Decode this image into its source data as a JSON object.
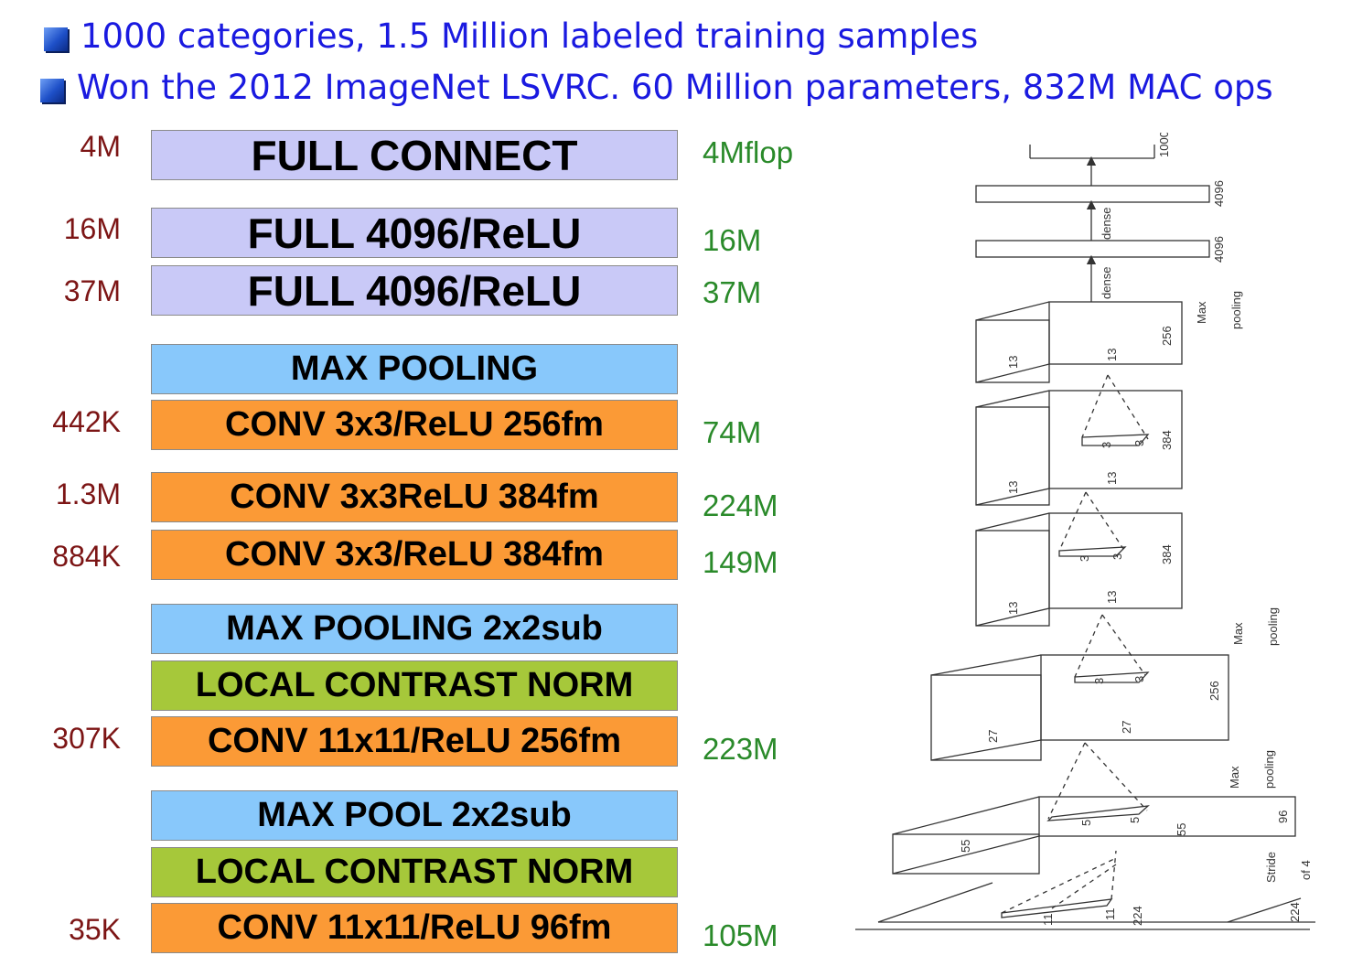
{
  "bullets": [
    "1000 categories, 1.5 Million labeled training samples",
    "Won the 2012 ImageNet LSVRC. 60 Million parameters, 832M MAC ops"
  ],
  "layers": [
    {
      "label": "FULL CONNECT",
      "kind": "fc",
      "params": "4M",
      "flops": "4Mflop"
    },
    {
      "label": "FULL 4096/ReLU",
      "kind": "fc",
      "params": "16M",
      "flops": "16M"
    },
    {
      "label": "FULL 4096/ReLU",
      "kind": "fc",
      "params": "37M",
      "flops": "37M"
    },
    {
      "label": "MAX POOLING",
      "kind": "pool",
      "params": "",
      "flops": ""
    },
    {
      "label": "CONV 3x3/ReLU 256fm",
      "kind": "conv",
      "params": "442K",
      "flops": "74M"
    },
    {
      "label": "CONV 3x3ReLU 384fm",
      "kind": "conv",
      "params": "1.3M",
      "flops": "224M"
    },
    {
      "label": "CONV 3x3/ReLU 384fm",
      "kind": "conv",
      "params": "884K",
      "flops": "149M"
    },
    {
      "label": "MAX POOLING 2x2sub",
      "kind": "pool",
      "params": "",
      "flops": ""
    },
    {
      "label": "LOCAL CONTRAST NORM",
      "kind": "norm",
      "params": "",
      "flops": ""
    },
    {
      "label": "CONV 11x11/ReLU 256fm",
      "kind": "conv",
      "params": "307K",
      "flops": "223M"
    },
    {
      "label": "MAX POOL 2x2sub",
      "kind": "pool",
      "params": "",
      "flops": ""
    },
    {
      "label": "LOCAL CONTRAST NORM",
      "kind": "norm",
      "params": "",
      "flops": ""
    },
    {
      "label": "CONV 11x11/ReLU 96fm",
      "kind": "conv",
      "params": "35K",
      "flops": "105M"
    }
  ],
  "architecture": {
    "labels": {
      "out_1000": "1000",
      "fc_4096_top": "4096",
      "fc_4096_bottom": "4096",
      "dense_top": "dense",
      "dense_bottom": "dense",
      "max": "Max",
      "pooling": "pooling",
      "n13": "13",
      "n256": "256",
      "n384": "384",
      "n27": "27",
      "n55": "55",
      "n96": "96",
      "n3": "3",
      "n5": "5",
      "n11": "11",
      "n224": "224",
      "stride": "Stride",
      "of4": "of 4"
    }
  }
}
